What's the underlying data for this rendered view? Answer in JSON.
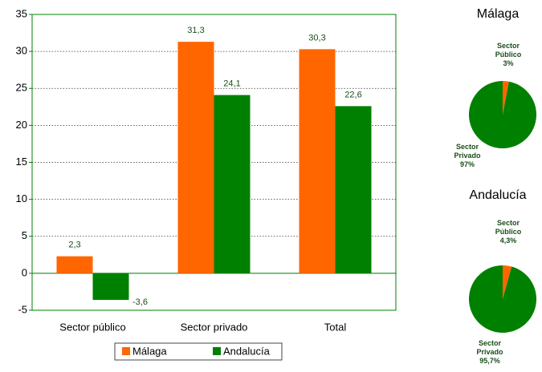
{
  "chart_data": [
    {
      "type": "bar",
      "categories": [
        "Sector público",
        "Sector privado",
        "Total"
      ],
      "series": [
        {
          "name": "Málaga",
          "color": "#ff6600",
          "values": [
            2.3,
            31.3,
            30.3
          ],
          "value_labels": [
            "2,3",
            "31,3",
            "30,3"
          ]
        },
        {
          "name": "Andalucía",
          "color": "#008000",
          "values": [
            -3.6,
            24.1,
            22.6
          ],
          "value_labels": [
            "-3,6",
            "24,1",
            "22,6"
          ]
        }
      ],
      "ylim": [
        -5,
        35
      ],
      "yticks": [
        -5,
        0,
        5,
        10,
        15,
        20,
        25,
        30,
        35
      ],
      "grid": true,
      "legend": "bottom"
    },
    {
      "type": "pie",
      "title": "Málaga",
      "categories": [
        "Sector Público",
        "Sector Privado"
      ],
      "values": [
        3,
        97
      ],
      "value_labels": [
        "3%",
        "97%"
      ],
      "colors": [
        "#ff6600",
        "#008000"
      ]
    },
    {
      "type": "pie",
      "title": "Andalucía",
      "categories": [
        "Sector Público",
        "Sector Privado"
      ],
      "values": [
        4.3,
        95.7
      ],
      "value_labels": [
        "4,3%",
        "95,7%"
      ],
      "colors": [
        "#ff6600",
        "#008000"
      ]
    }
  ]
}
